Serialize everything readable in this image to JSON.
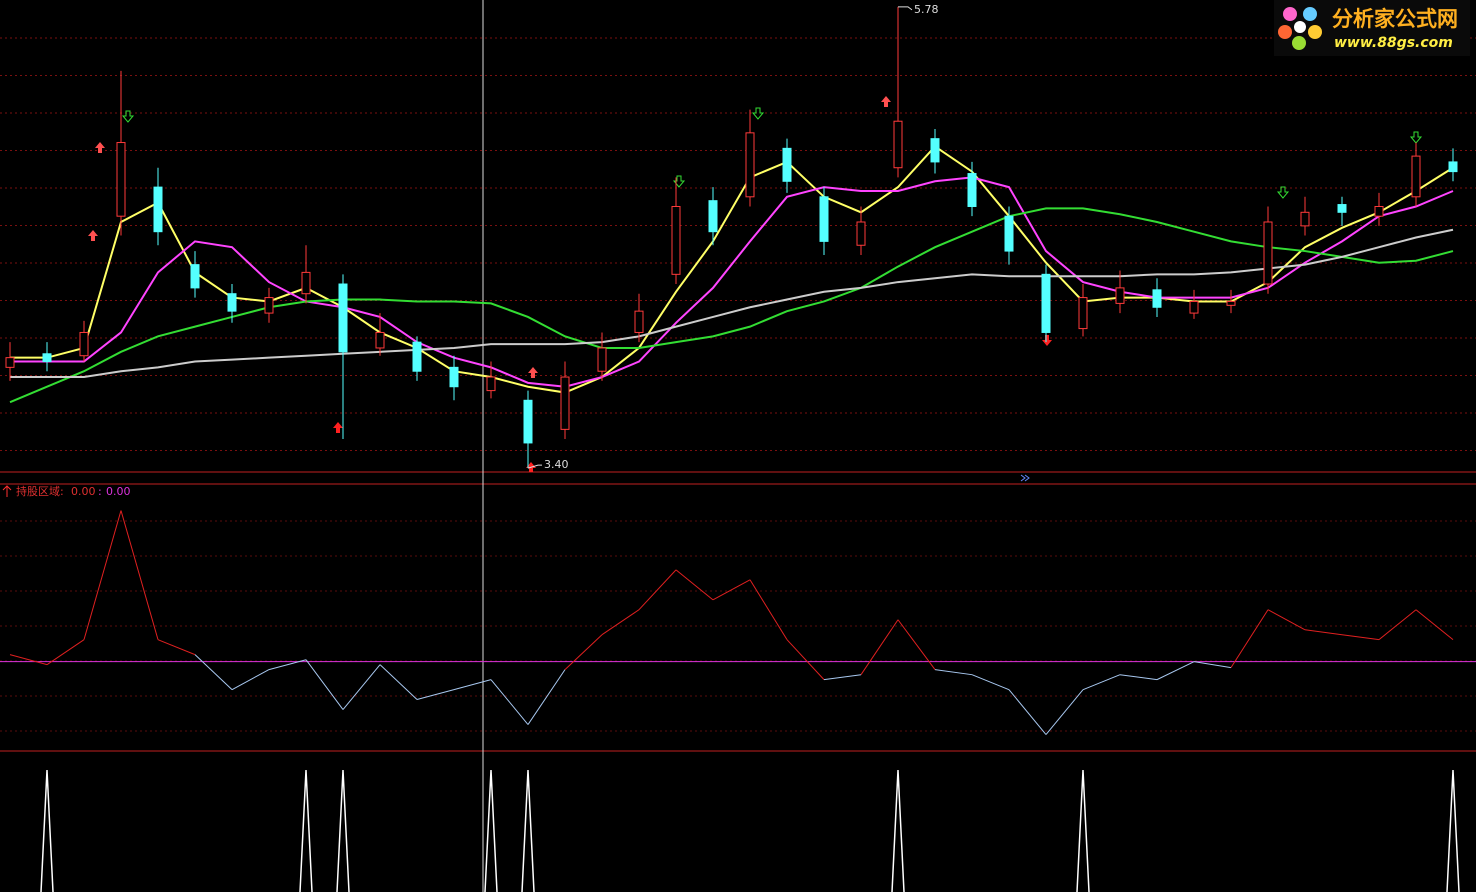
{
  "chart_data": {
    "type": "candlestick",
    "open": [
      3.92,
      3.99,
      3.98,
      4.7,
      4.85,
      4.45,
      4.3,
      4.2,
      4.3,
      4.35,
      4.02,
      4.05,
      3.92,
      3.8,
      3.75,
      3.6,
      3.9,
      4.1,
      4.4,
      4.78,
      4.8,
      5.05,
      4.8,
      4.55,
      4.95,
      5.1,
      4.92,
      4.7,
      4.4,
      4.12,
      4.25,
      4.32,
      4.2,
      4.24,
      4.35,
      4.65,
      4.76,
      4.7,
      4.8,
      4.98
    ],
    "high": [
      4.05,
      4.05,
      4.16,
      5.45,
      4.95,
      4.52,
      4.35,
      4.33,
      4.55,
      4.4,
      4.2,
      4.08,
      3.98,
      3.95,
      3.8,
      3.95,
      4.1,
      4.3,
      4.9,
      4.85,
      5.25,
      5.1,
      4.85,
      4.75,
      5.78,
      5.15,
      4.98,
      4.75,
      4.45,
      4.35,
      4.42,
      4.38,
      4.32,
      4.32,
      4.75,
      4.8,
      4.8,
      4.82,
      5.08,
      5.05
    ],
    "low": [
      3.85,
      3.9,
      3.95,
      4.6,
      4.55,
      4.28,
      4.15,
      4.15,
      4.25,
      3.55,
      3.98,
      3.85,
      3.75,
      3.76,
      3.4,
      3.55,
      3.85,
      4.05,
      4.35,
      4.55,
      4.75,
      4.82,
      4.5,
      4.5,
      4.9,
      4.92,
      4.7,
      4.45,
      4.05,
      4.08,
      4.2,
      4.18,
      4.17,
      4.2,
      4.3,
      4.6,
      4.65,
      4.65,
      4.75,
      4.88
    ],
    "close": [
      3.97,
      3.95,
      4.1,
      5.08,
      4.62,
      4.33,
      4.21,
      4.28,
      4.41,
      4.0,
      4.1,
      3.9,
      3.82,
      3.87,
      3.53,
      3.87,
      4.02,
      4.21,
      4.75,
      4.62,
      5.13,
      4.88,
      4.57,
      4.67,
      5.19,
      4.98,
      4.75,
      4.52,
      4.1,
      4.28,
      4.33,
      4.23,
      4.26,
      4.26,
      4.67,
      4.72,
      4.72,
      4.75,
      5.01,
      4.93
    ],
    "up_color": "#ff3a3a",
    "down_color": "#54ffff",
    "ylim": [
      3.38,
      5.8
    ],
    "max_label": "5.78",
    "min_label": "3.40",
    "series": [
      {
        "color": "#ffff66",
        "values": [
          3.97,
          3.97,
          4.02,
          4.67,
          4.77,
          4.41,
          4.28,
          4.26,
          4.33,
          4.23,
          4.1,
          4.02,
          3.9,
          3.87,
          3.82,
          3.79,
          3.87,
          4.02,
          4.31,
          4.57,
          4.9,
          4.98,
          4.8,
          4.72,
          4.85,
          5.06,
          4.93,
          4.7,
          4.46,
          4.26,
          4.28,
          4.28,
          4.26,
          4.26,
          4.36,
          4.54,
          4.64,
          4.72,
          4.83,
          4.95
        ]
      },
      {
        "color": "#ff44ff",
        "values": [
          3.95,
          3.95,
          3.95,
          4.1,
          4.41,
          4.57,
          4.54,
          4.36,
          4.26,
          4.23,
          4.18,
          4.05,
          3.97,
          3.92,
          3.84,
          3.82,
          3.87,
          3.95,
          4.15,
          4.33,
          4.57,
          4.8,
          4.85,
          4.83,
          4.83,
          4.88,
          4.9,
          4.85,
          4.52,
          4.36,
          4.31,
          4.28,
          4.28,
          4.28,
          4.33,
          4.46,
          4.57,
          4.7,
          4.75,
          4.83
        ]
      },
      {
        "color": "#33dd33",
        "values": [
          3.74,
          3.82,
          3.9,
          4.0,
          4.08,
          4.13,
          4.18,
          4.23,
          4.26,
          4.27,
          4.27,
          4.26,
          4.26,
          4.25,
          4.18,
          4.08,
          4.02,
          4.02,
          4.05,
          4.08,
          4.13,
          4.21,
          4.26,
          4.33,
          4.44,
          4.54,
          4.62,
          4.7,
          4.74,
          4.74,
          4.71,
          4.67,
          4.62,
          4.57,
          4.54,
          4.52,
          4.49,
          4.46,
          4.47,
          4.52
        ]
      },
      {
        "color": "#cccccc",
        "values": [
          3.87,
          3.87,
          3.87,
          3.9,
          3.92,
          3.95,
          3.96,
          3.97,
          3.98,
          3.99,
          4.0,
          4.01,
          4.02,
          4.04,
          4.04,
          4.04,
          4.05,
          4.08,
          4.13,
          4.18,
          4.23,
          4.27,
          4.31,
          4.33,
          4.36,
          4.38,
          4.4,
          4.39,
          4.39,
          4.39,
          4.39,
          4.4,
          4.4,
          4.41,
          4.43,
          4.45,
          4.49,
          4.54,
          4.59,
          4.63
        ]
      }
    ],
    "indicator": {
      "readout": [
        "持股区域:",
        "0.00",
        ":",
        "0.00"
      ],
      "values": [
        0.47,
        -0.2,
        1.47,
        10.1,
        1.47,
        0.47,
        -1.87,
        -0.53,
        0.13,
        -3.2,
        -0.2,
        -2.53,
        -1.87,
        -1.2,
        -4.2,
        -0.53,
        1.8,
        3.47,
        6.13,
        4.13,
        5.47,
        1.47,
        -1.2,
        -0.87,
        2.8,
        -0.53,
        -0.87,
        -1.87,
        -4.87,
        -1.87,
        -0.87,
        -1.2,
        0,
        -0.4,
        3.47,
        2.13,
        1.8,
        1.47,
        3.47,
        1.47
      ],
      "ylim": [
        -5.9,
        11.8
      ],
      "baseline": 0,
      "up_color": "#e02020",
      "down_color": "#a8c8f0",
      "baseline_color": "#dd33dd"
    },
    "signal": {
      "values": [
        0,
        1,
        0,
        0,
        0,
        0,
        0,
        0,
        1,
        1,
        0,
        0,
        0,
        1,
        1,
        0,
        0,
        0,
        0,
        0,
        0,
        0,
        0,
        0,
        1,
        0,
        0,
        0,
        0,
        1,
        0,
        0,
        0,
        0,
        0,
        0,
        0,
        0,
        0,
        1
      ],
      "ylim": [
        0,
        1
      ],
      "color": "#ffffff"
    }
  },
  "logo": {
    "title": "分析家公式网",
    "url": "www.88gs.com"
  }
}
